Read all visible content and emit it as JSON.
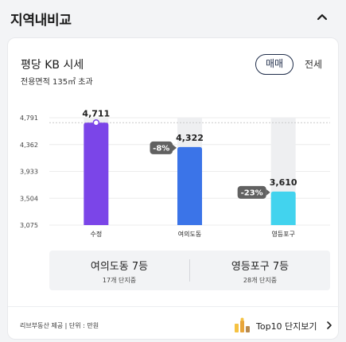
{
  "header": {
    "title": "지역내비교"
  },
  "card": {
    "title": "평당 KB 시세",
    "subtitle": "전용면적 135㎡ 초과",
    "toggle": {
      "active": "매매",
      "inactive": "전세"
    }
  },
  "chart_data": {
    "type": "bar",
    "categories": [
      "수정",
      "여의도동",
      "영등포구"
    ],
    "values": [
      4711,
      4322,
      3610
    ],
    "value_labels": [
      "4,711",
      "4,322",
      "3,610"
    ],
    "diff_badges": [
      "",
      "-8%",
      "-23%"
    ],
    "yticks": [
      3075,
      3504,
      3933,
      4362,
      4791
    ],
    "ytick_labels": [
      "3,075",
      "3,504",
      "3,933",
      "4,362",
      "4,791"
    ],
    "ylim": [
      3075,
      4791
    ],
    "reference_line": 4711,
    "grid": true,
    "colors": [
      "#7b45e8",
      "#3b74e8",
      "#42d3ee"
    ],
    "background_bar_color": "#eeeff1",
    "badge_color": "#616161"
  },
  "stats": [
    {
      "main": "여의도동 7등",
      "sub": "17개 단지중"
    },
    {
      "main": "영등포구 7등",
      "sub": "28개 단지중"
    }
  ],
  "footer": {
    "note": "리브부동산 제공 | 단위 : 만원",
    "link": "Top10 단지보기"
  }
}
